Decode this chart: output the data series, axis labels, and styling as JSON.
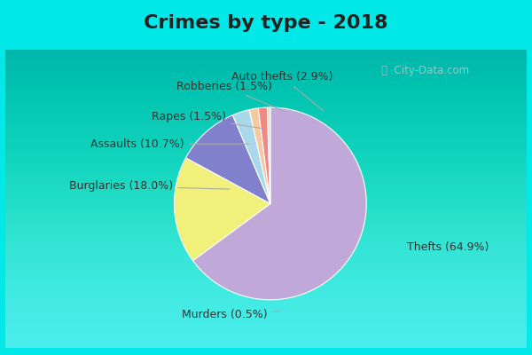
{
  "title": "Crimes by type - 2018",
  "labels": [
    "Thefts",
    "Burglaries",
    "Assaults",
    "Auto thefts",
    "Robberies",
    "Rapes",
    "Murders"
  ],
  "values": [
    64.9,
    18.0,
    10.7,
    2.9,
    1.5,
    1.5,
    0.5
  ],
  "colors": [
    "#c0a8d8",
    "#f0f07a",
    "#8080cc",
    "#a8d8ea",
    "#f5c9a0",
    "#f08888",
    "#d0e8c0"
  ],
  "background_cyan": "#00e8e8",
  "background_main_top": "#c8ead8",
  "background_main_bottom": "#d8f0e8",
  "title_fontsize": 16,
  "label_fontsize": 9,
  "startangle": 90,
  "figsize": [
    6.0,
    4.0
  ],
  "dpi": 100
}
